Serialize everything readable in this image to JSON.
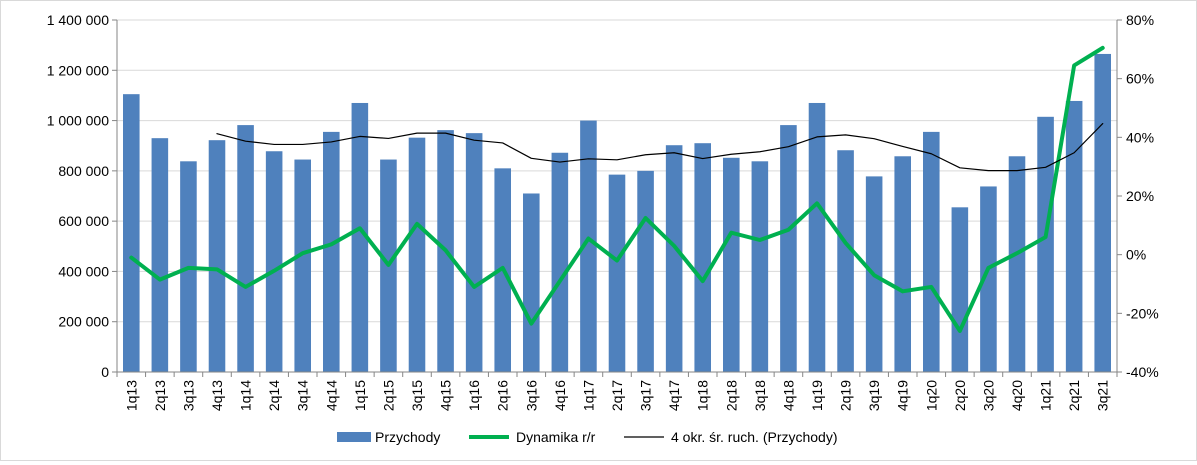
{
  "chart_data": {
    "type": "bar",
    "categories": [
      "1q13",
      "2q13",
      "3q13",
      "4q13",
      "1q14",
      "2q14",
      "3q14",
      "4q14",
      "1q15",
      "2q15",
      "3q15",
      "4q15",
      "1q16",
      "2q16",
      "3q16",
      "4q16",
      "1q17",
      "2q17",
      "3q17",
      "4q17",
      "1q18",
      "2q18",
      "3q18",
      "4q18",
      "1q19",
      "2q19",
      "3q19",
      "4q19",
      "1q20",
      "2q20",
      "3q20",
      "4q20",
      "1q21",
      "2q21",
      "3q21"
    ],
    "series": [
      {
        "name": "Przychody",
        "type": "bar",
        "axis": "left",
        "color": "#4f81bd",
        "values": [
          1105000,
          930000,
          838000,
          922000,
          982000,
          878000,
          845000,
          955000,
          1070000,
          845000,
          932000,
          962000,
          950000,
          810000,
          710000,
          872000,
          1000000,
          785000,
          800000,
          902000,
          910000,
          852000,
          838000,
          982000,
          1070000,
          882000,
          778000,
          858000,
          955000,
          655000,
          738000,
          858000,
          1015000,
          1078000,
          1265000
        ]
      },
      {
        "name": "Dynamika r/r",
        "type": "line",
        "axis": "right",
        "color": "#00b050",
        "values": [
          -0.01,
          -0.085,
          -0.045,
          -0.05,
          -0.11,
          -0.055,
          0.005,
          0.035,
          0.09,
          -0.035,
          0.105,
          0.015,
          -0.11,
          -0.045,
          -0.235,
          -0.09,
          0.055,
          -0.02,
          0.125,
          0.03,
          -0.09,
          0.075,
          0.05,
          0.085,
          0.175,
          0.04,
          -0.07,
          -0.125,
          -0.11,
          -0.26,
          -0.045,
          0.005,
          0.06,
          0.645,
          0.705
        ]
      },
      {
        "name": "4 okr. śr. ruch. (Przychody)",
        "type": "line",
        "axis": "left",
        "color": "#000000",
        "values": [
          null,
          null,
          null,
          948000,
          918000,
          905000,
          905000,
          915000,
          937000,
          929000,
          950000,
          950000,
          922000,
          911000,
          850000,
          835000,
          848000,
          844000,
          864000,
          872000,
          849000,
          866000,
          876000,
          896000,
          935000,
          943000,
          928000,
          897000,
          868000,
          812000,
          801000,
          801000,
          814000,
          872000,
          988000
        ]
      }
    ],
    "y_left": {
      "min": 0,
      "max": 1400000,
      "ticks": [
        0,
        200000,
        400000,
        600000,
        800000,
        1000000,
        1200000,
        1400000
      ],
      "tick_labels": [
        "0",
        "200 000",
        "400 000",
        "600 000",
        "800 000",
        "1 000 000",
        "1 200 000",
        "1 400 000"
      ]
    },
    "y_right": {
      "min": -0.4,
      "max": 0.8,
      "ticks": [
        -0.4,
        -0.2,
        0,
        0.2,
        0.4,
        0.6,
        0.8
      ],
      "tick_labels": [
        "-40%",
        "-20%",
        "0%",
        "20%",
        "40%",
        "60%",
        "80%"
      ]
    },
    "title": "",
    "xlabel": "",
    "ylabel": "",
    "grid": "horizontal",
    "legend_position": "bottom"
  }
}
